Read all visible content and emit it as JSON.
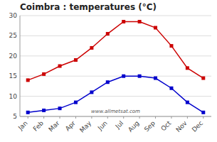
{
  "chart_data": {
    "type": "line",
    "title": "Coimbra : temperatures (°C)",
    "categories": [
      "Jan",
      "Feb",
      "Mar",
      "Apr",
      "May",
      "Jun",
      "Jul",
      "Aug",
      "Sep",
      "Oct",
      "Nov",
      "Dec"
    ],
    "series": [
      {
        "color": "#cc0000",
        "marker": "square",
        "values": [
          14.0,
          15.5,
          17.5,
          19.0,
          22.0,
          25.5,
          28.5,
          28.5,
          27.0,
          22.5,
          17.0,
          14.5
        ]
      },
      {
        "color": "#0000cc",
        "marker": "square",
        "values": [
          6.0,
          6.5,
          7.0,
          8.5,
          11.0,
          13.5,
          15.0,
          15.0,
          14.5,
          12.0,
          8.5,
          6.0
        ]
      }
    ],
    "ylim": [
      5,
      30
    ],
    "yticks": [
      5,
      10,
      15,
      20,
      25,
      30
    ],
    "grid": true,
    "annotations": [
      "www.allmetsat.com"
    ]
  }
}
